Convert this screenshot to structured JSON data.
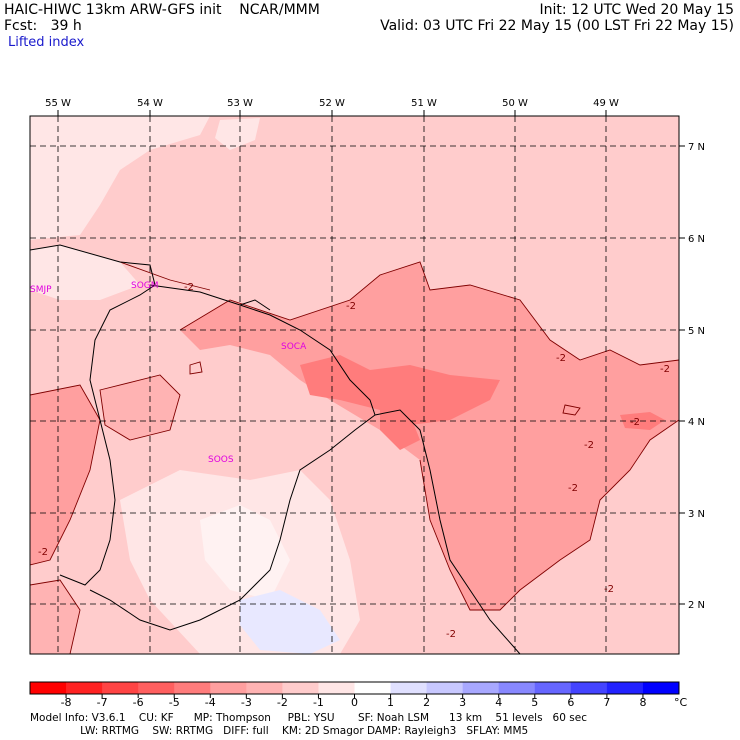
{
  "header": {
    "model_line": "HAIC-HIWC 13km ARW-GFS init    NCAR/MMM",
    "fcst_line": "Fcst:   39 h",
    "field_name": "Lifted index",
    "init_line": "Init: 12 UTC Wed 20 May 15",
    "valid_line": "Valid: 03 UTC Fri 22 May 15 (00 LST Fri 22 May 15)"
  },
  "map": {
    "lon_labels": [
      "55 W",
      "54 W",
      "53 W",
      "52 W",
      "51 W",
      "50 W",
      "49 W"
    ],
    "lat_labels": [
      "7 N",
      "6 N",
      "5 N",
      "4 N",
      "3 N",
      "2 N"
    ],
    "stations": [
      "SMJP",
      "SOGM",
      "SOCA",
      "SOOS"
    ],
    "contour_labels": [
      "-2",
      "-2",
      "-2",
      "-2",
      "-2",
      "-2",
      "-2",
      "-2",
      "-2",
      "-2"
    ],
    "colors": {
      "background_fill": "#ffcccc",
      "light_fill": "#ffe6e6",
      "neutral_fill": "#fff2f2",
      "medium_fill": "#ff9f9f",
      "strong_fill": "#ff7c7c",
      "blue_fill": "#e8e8ff",
      "border": "#000000",
      "contour": "#800000",
      "station_label": "#e000e0"
    }
  },
  "colorbar": {
    "ticks": [
      "-8",
      "-7",
      "-6",
      "-5",
      "-4",
      "-3",
      "-2",
      "-1",
      "0",
      "1",
      "2",
      "3",
      "4",
      "5",
      "6",
      "7",
      "8"
    ],
    "unit": "°C",
    "colors": [
      "#ff0000",
      "#ff2222",
      "#ff4444",
      "#ff5f5f",
      "#ff7c7c",
      "#ff9f9f",
      "#ffb3b3",
      "#ffcccc",
      "#ffe6e6",
      "#ffffff",
      "#e0e0ff",
      "#c8c8ff",
      "#a8a8ff",
      "#8888ff",
      "#6666ff",
      "#4444ff",
      "#2222ff",
      "#0000ff"
    ]
  },
  "footer": {
    "line1": "Model Info: V3.6.1    CU: KF      MP: Thompson     PBL: YSU       SF: Noah LSM      13 km    51 levels   60 sec",
    "line2": "               LW: RRTMG    SW: RRTMG   DIFF: full    KM: 2D Smagor DAMP: Rayleigh3   SFLAY: MM5"
  }
}
